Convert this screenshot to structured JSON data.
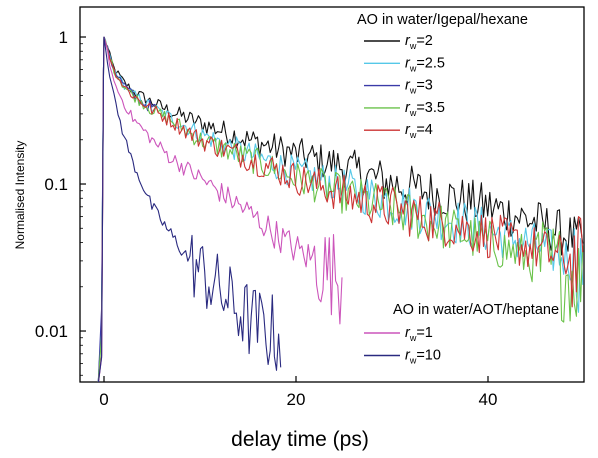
{
  "chart_data": {
    "type": "line",
    "title": "",
    "xlabel": "delay time (ps)",
    "ylabel": "Normalised Intensity",
    "x_scale": "linear",
    "y_scale": "log",
    "xlim": [
      -2.5,
      50
    ],
    "ylim": [
      0.0045,
      1.6
    ],
    "xticks": [
      0,
      20,
      40
    ],
    "yticks": [
      0.01,
      0.1,
      1
    ],
    "ytick_labels": [
      "0.01",
      "0.1",
      "1"
    ],
    "grid": false,
    "legend_groups": [
      {
        "title": "AO in water/Igepal/hexane",
        "position": "top-right",
        "entries": [
          {
            "var": "r",
            "sub": "w",
            "text": "=2"
          },
          {
            "var": "r",
            "sub": "w",
            "text": "=2.5"
          },
          {
            "var": "r",
            "sub": "w",
            "text": "=3"
          },
          {
            "var": "r",
            "sub": "w",
            "text": "=3.5"
          },
          {
            "var": "r",
            "sub": "w",
            "text": "=4"
          }
        ]
      },
      {
        "title": "AO in water/AOT/heptane",
        "position": "bottom-right",
        "entries": [
          {
            "var": "r",
            "sub": "w",
            "text": "=1"
          },
          {
            "var": "r",
            "sub": "w",
            "text": "=10"
          }
        ]
      }
    ],
    "series": [
      {
        "color": "#111111",
        "tmax": 50,
        "points": [
          [
            0,
            1
          ],
          [
            1,
            0.62
          ],
          [
            2,
            0.5
          ],
          [
            3,
            0.43
          ],
          [
            5,
            0.36
          ],
          [
            7,
            0.31
          ],
          [
            10,
            0.26
          ],
          [
            15,
            0.2
          ],
          [
            20,
            0.16
          ],
          [
            25,
            0.13
          ],
          [
            30,
            0.1
          ],
          [
            35,
            0.085
          ],
          [
            40,
            0.07
          ],
          [
            45,
            0.055
          ],
          [
            50,
            0.04
          ]
        ]
      },
      {
        "color": "#55c8e8",
        "tmax": 50,
        "points": [
          [
            0,
            1
          ],
          [
            1,
            0.6
          ],
          [
            2,
            0.48
          ],
          [
            3,
            0.41
          ],
          [
            5,
            0.33
          ],
          [
            7,
            0.28
          ],
          [
            10,
            0.22
          ],
          [
            15,
            0.16
          ],
          [
            20,
            0.12
          ],
          [
            25,
            0.095
          ],
          [
            30,
            0.075
          ],
          [
            35,
            0.06
          ],
          [
            40,
            0.048
          ],
          [
            45,
            0.038
          ],
          [
            50,
            0.028
          ]
        ]
      },
      {
        "color": "#3a3aa8",
        "tmax": 5.5,
        "points": [
          [
            0,
            1
          ],
          [
            1,
            0.6
          ],
          [
            2,
            0.48
          ],
          [
            3,
            0.4
          ],
          [
            4,
            0.36
          ],
          [
            5.5,
            0.32
          ]
        ]
      },
      {
        "color": "#6ac24a",
        "tmax": 50,
        "points": [
          [
            0,
            1
          ],
          [
            1,
            0.6
          ],
          [
            2,
            0.47
          ],
          [
            3,
            0.4
          ],
          [
            5,
            0.32
          ],
          [
            7,
            0.27
          ],
          [
            10,
            0.2
          ],
          [
            15,
            0.15
          ],
          [
            20,
            0.11
          ],
          [
            25,
            0.085
          ],
          [
            30,
            0.068
          ],
          [
            35,
            0.052
          ],
          [
            40,
            0.04
          ],
          [
            45,
            0.03
          ],
          [
            50,
            0.022
          ]
        ]
      },
      {
        "color": "#cc3333",
        "tmax": 50,
        "points": [
          [
            0,
            1
          ],
          [
            1,
            0.6
          ],
          [
            2,
            0.47
          ],
          [
            3,
            0.4
          ],
          [
            5,
            0.32
          ],
          [
            7,
            0.27
          ],
          [
            10,
            0.2
          ],
          [
            15,
            0.15
          ],
          [
            20,
            0.11
          ],
          [
            25,
            0.085
          ],
          [
            30,
            0.068
          ],
          [
            35,
            0.055
          ],
          [
            40,
            0.045
          ],
          [
            45,
            0.036
          ],
          [
            50,
            0.028
          ]
        ]
      },
      {
        "color": "#cc55bb",
        "tmax": 25,
        "points": [
          [
            0,
            1
          ],
          [
            1,
            0.5
          ],
          [
            2,
            0.36
          ],
          [
            3,
            0.28
          ],
          [
            5,
            0.2
          ],
          [
            7,
            0.15
          ],
          [
            10,
            0.11
          ],
          [
            13,
            0.08
          ],
          [
            15,
            0.065
          ],
          [
            18,
            0.045
          ],
          [
            20,
            0.036
          ],
          [
            23,
            0.027
          ],
          [
            25,
            0.022
          ]
        ]
      },
      {
        "color": "#2a2a80",
        "tmax": 18.5,
        "points": [
          [
            0,
            1
          ],
          [
            0.5,
            0.6
          ],
          [
            1,
            0.4
          ],
          [
            2,
            0.22
          ],
          [
            3,
            0.14
          ],
          [
            5,
            0.07
          ],
          [
            7,
            0.045
          ],
          [
            9,
            0.03
          ],
          [
            11,
            0.022
          ],
          [
            13,
            0.016
          ],
          [
            15,
            0.012
          ],
          [
            17,
            0.01
          ],
          [
            18.5,
            0.009
          ]
        ]
      }
    ]
  }
}
